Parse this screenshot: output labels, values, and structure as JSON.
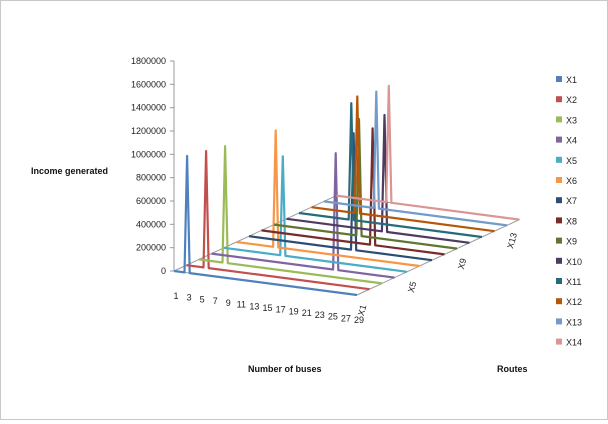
{
  "chart_data": {
    "type": "line-3d",
    "title": "",
    "ylabel": "Income generated",
    "xlabel": "Number of buses",
    "zlabel": "Routes",
    "ylim": [
      0,
      1800000
    ],
    "y_ticks": [
      "0",
      "200000",
      "400000",
      "600000",
      "800000",
      "1000000",
      "1200000",
      "1400000",
      "1600000",
      "1800000"
    ],
    "x_ticks": [
      "1",
      "3",
      "5",
      "7",
      "9",
      "11",
      "13",
      "15",
      "17",
      "19",
      "21",
      "23",
      "25",
      "27",
      "29"
    ],
    "z_ticks": [
      "X1",
      "X5",
      "X9",
      "X13"
    ],
    "legend_position": "right",
    "grid": false,
    "series": [
      {
        "name": "X1",
        "color": "#4f81bd",
        "spike_bus": 3,
        "spike_income": 1000000
      },
      {
        "name": "X2",
        "color": "#c0504d",
        "spike_bus": 4,
        "spike_income": 1000000
      },
      {
        "name": "X3",
        "color": "#9bbb59",
        "spike_bus": 5,
        "spike_income": 1000000
      },
      {
        "name": "X4",
        "color": "#8064a2",
        "spike_bus": 20,
        "spike_income": 1000000
      },
      {
        "name": "X5",
        "color": "#4bacc6",
        "spike_bus": 10,
        "spike_income": 850000
      },
      {
        "name": "X6",
        "color": "#f79646",
        "spike_bus": 7,
        "spike_income": 1000000
      },
      {
        "name": "X7",
        "color": "#2c4d75",
        "spike_bus": 17,
        "spike_income": 1000000
      },
      {
        "name": "X8",
        "color": "#772c2a",
        "spike_bus": 18,
        "spike_income": 1000000
      },
      {
        "name": "X9",
        "color": "#5f7530",
        "spike_bus": 14,
        "spike_income": 1000000
      },
      {
        "name": "X10",
        "color": "#4d3b62",
        "spike_bus": 16,
        "spike_income": 1000000
      },
      {
        "name": "X11",
        "color": "#276a7c",
        "spike_bus": 9,
        "spike_income": 1000000
      },
      {
        "name": "X12",
        "color": "#b65708",
        "spike_bus": 8,
        "spike_income": 1000000
      },
      {
        "name": "X13",
        "color": "#729aca",
        "spike_bus": 9,
        "spike_income": 1000000
      },
      {
        "name": "X14",
        "color": "#d99694",
        "spike_bus": 9,
        "spike_income": 1000000
      }
    ]
  }
}
